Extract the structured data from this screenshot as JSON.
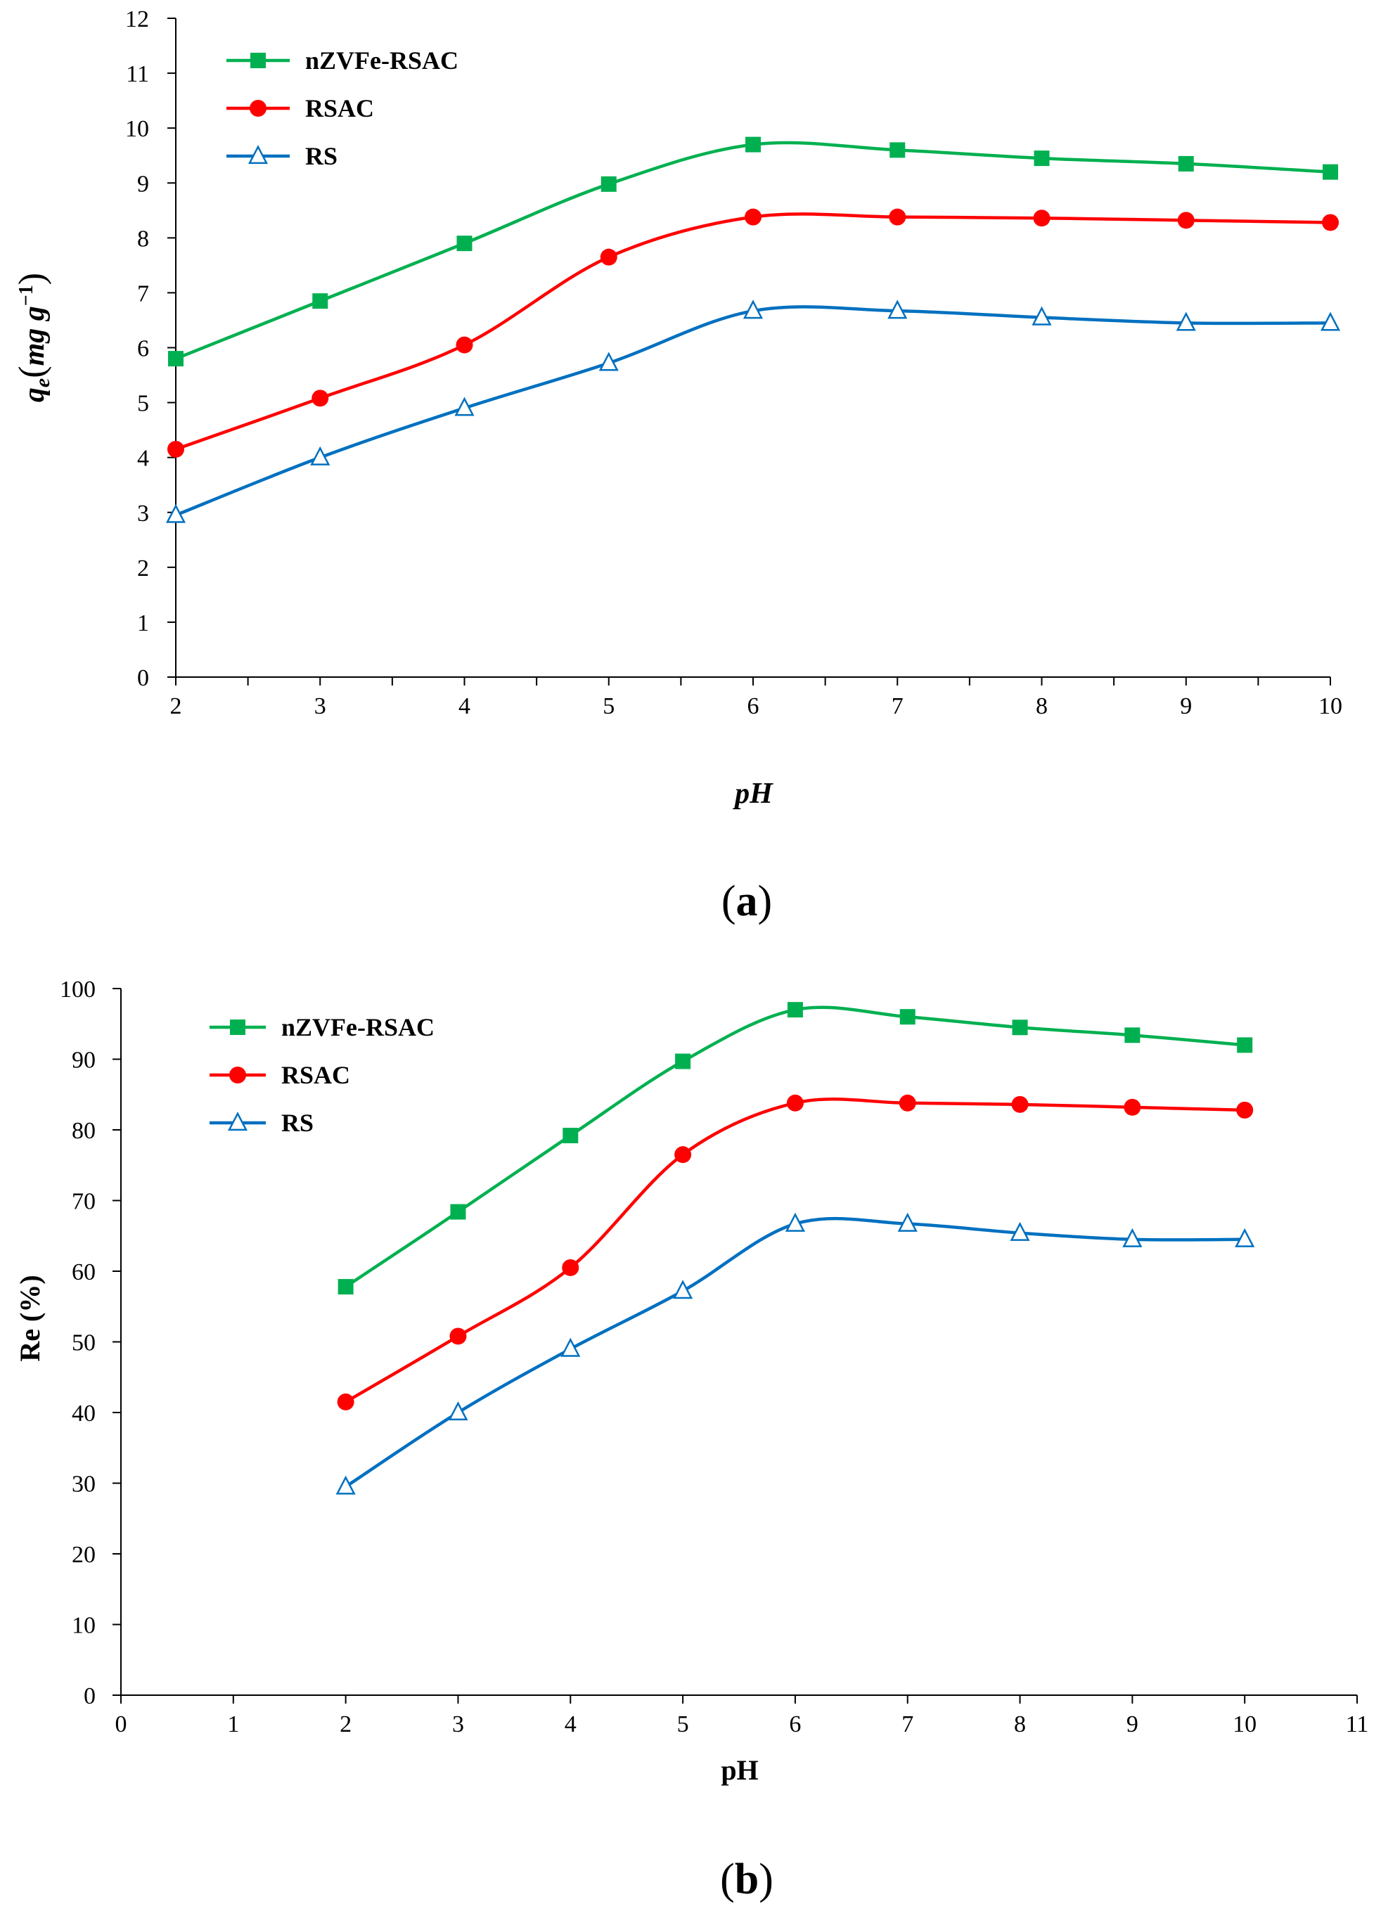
{
  "chart_data": [
    {
      "type": "line",
      "panel_label": {
        "open": "(",
        "letter": "a",
        "close": ")"
      },
      "xlabel": "pH",
      "ylabel_base": "q",
      "ylabel_sub": "e",
      "ylabel_paren_open": "(",
      "ylabel_units": "mg g",
      "ylabel_sup": "−1",
      "ylabel_paren_close": ")",
      "xlim": [
        2,
        10
      ],
      "ylim": [
        0,
        12
      ],
      "x_ticks": [
        2,
        3,
        4,
        5,
        6,
        7,
        8,
        9,
        10
      ],
      "y_ticks": [
        0,
        1,
        2,
        3,
        4,
        5,
        6,
        7,
        8,
        9,
        10,
        11,
        12
      ],
      "x_minor_ticks": [
        2.5,
        3.5,
        4.5,
        5.5,
        6.5,
        7.5,
        8.5,
        9.5
      ],
      "grid": false,
      "legend": "top-left",
      "x": [
        2,
        3,
        4,
        5,
        6,
        7,
        8,
        9,
        10
      ],
      "series": [
        {
          "name": "nZVFe-RSAC",
          "color": "#00b050",
          "marker": "square-filled",
          "values": [
            5.8,
            6.85,
            7.9,
            8.98,
            9.7,
            9.6,
            9.45,
            9.35,
            9.2
          ]
        },
        {
          "name": "RSAC",
          "color": "#ff0000",
          "marker": "circle-filled",
          "values": [
            4.15,
            5.08,
            6.05,
            7.65,
            8.38,
            8.38,
            8.36,
            8.32,
            8.28
          ]
        },
        {
          "name": "RS",
          "color": "#0070c0",
          "marker": "triangle-open",
          "values": [
            2.95,
            4.0,
            4.9,
            5.72,
            6.67,
            6.67,
            6.55,
            6.45,
            6.45
          ]
        }
      ]
    },
    {
      "type": "line",
      "panel_label": {
        "open": "(",
        "letter": "b",
        "close": ")"
      },
      "xlabel": "pH",
      "ylabel": "Re (%)",
      "xlim": [
        0,
        11
      ],
      "ylim": [
        0,
        100
      ],
      "x_ticks": [
        0,
        1,
        2,
        3,
        4,
        5,
        6,
        7,
        8,
        9,
        10,
        11
      ],
      "y_ticks": [
        0,
        10,
        20,
        30,
        40,
        50,
        60,
        70,
        80,
        90,
        100
      ],
      "grid": false,
      "legend": "top-left",
      "x": [
        2,
        3,
        4,
        5,
        6,
        7,
        8,
        9,
        10
      ],
      "series": [
        {
          "name": "nZVFe-RSAC",
          "color": "#00b050",
          "marker": "square-filled",
          "values": [
            57.8,
            68.4,
            79.2,
            89.7,
            97.0,
            96.0,
            94.5,
            93.4,
            92.0
          ]
        },
        {
          "name": "RSAC",
          "color": "#ff0000",
          "marker": "circle-filled",
          "values": [
            41.5,
            50.8,
            60.5,
            76.5,
            83.8,
            83.8,
            83.6,
            83.2,
            82.8
          ]
        },
        {
          "name": "RS",
          "color": "#0070c0",
          "marker": "triangle-open",
          "values": [
            29.5,
            40.0,
            49.0,
            57.2,
            66.7,
            66.7,
            65.4,
            64.5,
            64.5
          ]
        }
      ]
    }
  ]
}
